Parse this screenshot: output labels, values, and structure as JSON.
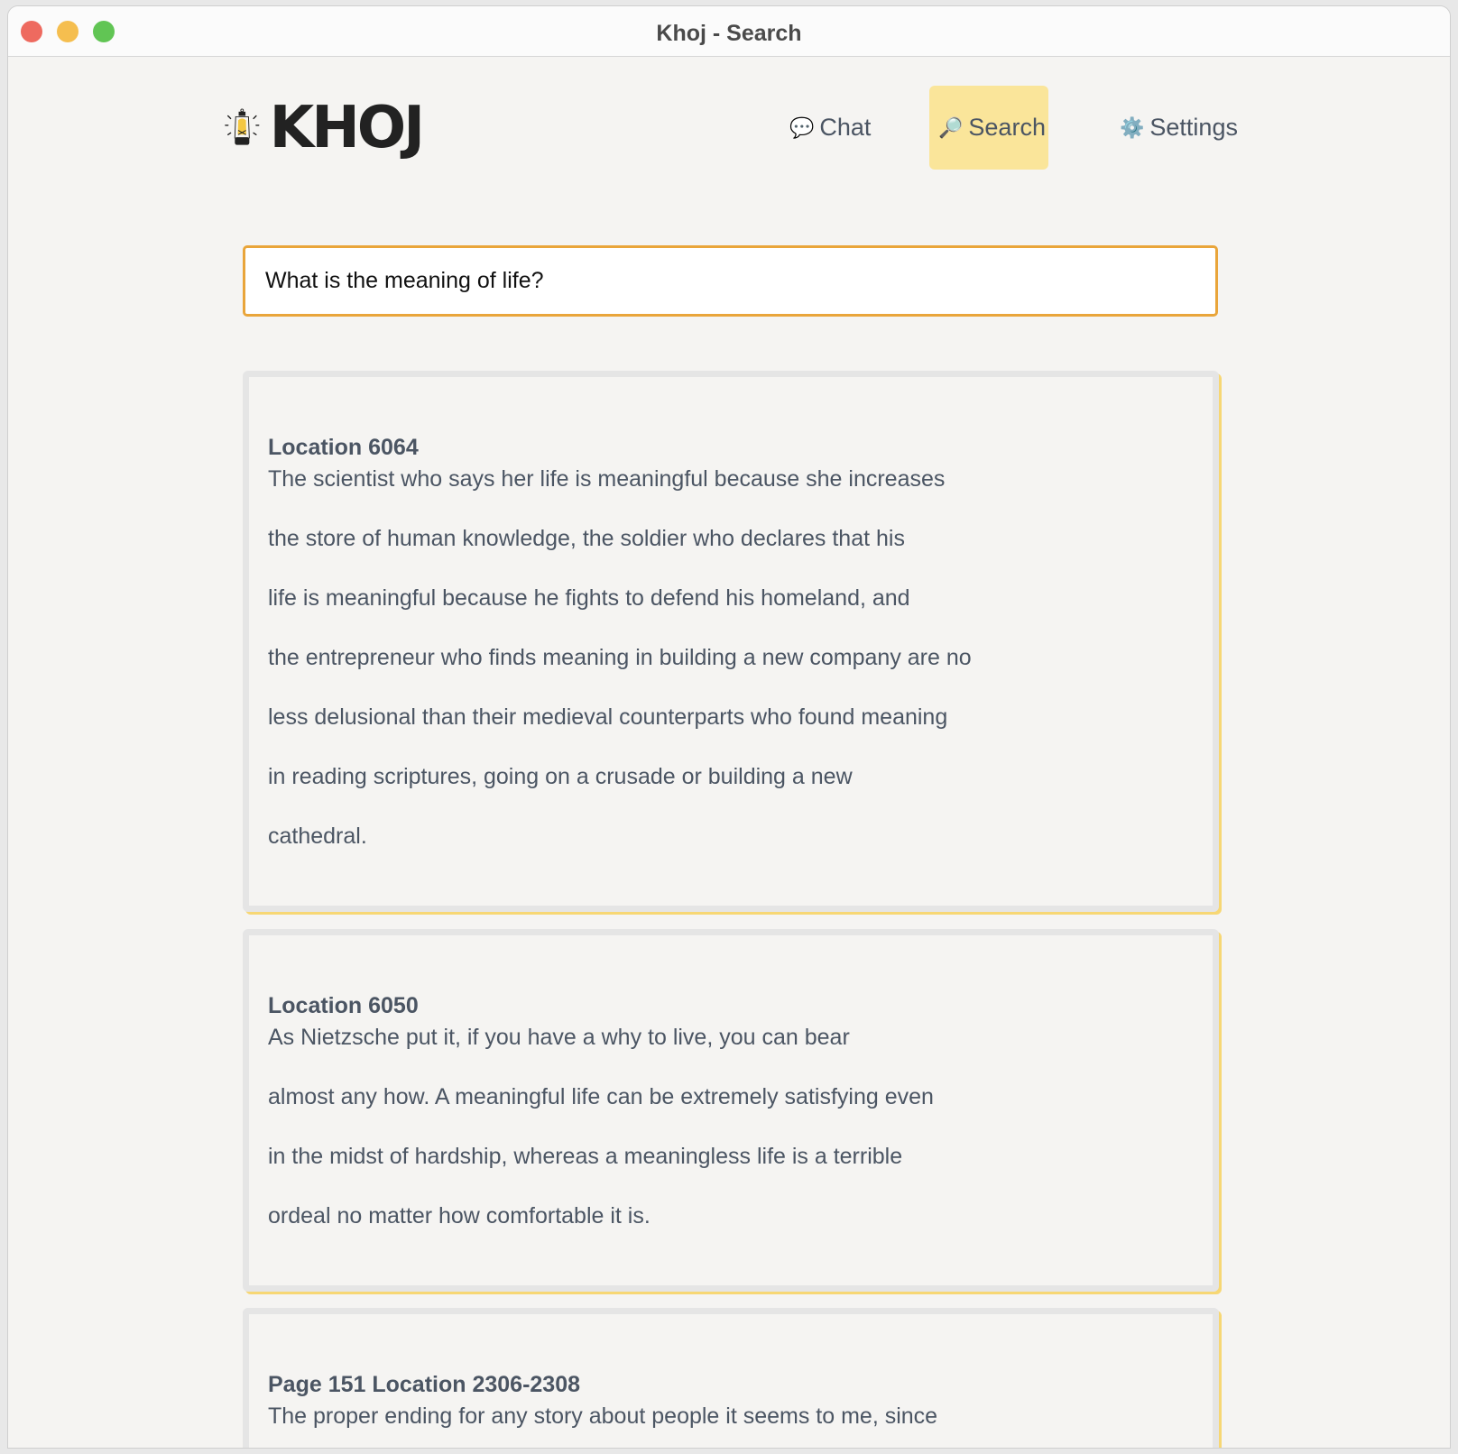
{
  "window": {
    "title": "Khoj - Search",
    "traffic_lights": {
      "close": "#ee6a5f",
      "minimize": "#f5be4f",
      "zoom": "#61c554"
    }
  },
  "logo": {
    "text": "KHOJ"
  },
  "nav": [
    {
      "label": "Chat",
      "icon": "chat-bubble-icon",
      "glyph": "💬"
    },
    {
      "label": "Search",
      "icon": "magnifier-icon",
      "glyph": "🔎",
      "active": true
    },
    {
      "label": "Settings",
      "icon": "gear-icon",
      "glyph": "⚙️"
    }
  ],
  "search": {
    "value": "What is the meaning of life?"
  },
  "results": [
    {
      "heading": "Location 6064",
      "lines": [
        "The scientist who says her life is meaningful because she increases",
        "the store of human knowledge, the soldier who declares that his",
        "life is meaningful because he fights to defend his homeland, and",
        "the entrepreneur who finds meaning in building a new company are no",
        "less delusional than their medieval counterparts who found meaning",
        "in reading scriptures, going on a crusade or building a new",
        "cathedral."
      ]
    },
    {
      "heading": "Location 6050",
      "lines": [
        "As Nietzsche put it, if you have a why to live, you can bear",
        "almost any how. A meaningful life can be extremely satisfying even",
        "in the midst of hardship, whereas a meaningless life is a terrible",
        "ordeal no matter how comfortable it is."
      ]
    },
    {
      "heading": "Page 151 Location 2306-2308",
      "lines": [
        "The proper ending for any story about people it seems to me, since"
      ]
    }
  ],
  "colors": {
    "accent": "#e9a53a",
    "active_nav": "#fae59a",
    "card_shadow": "#f7d774"
  }
}
